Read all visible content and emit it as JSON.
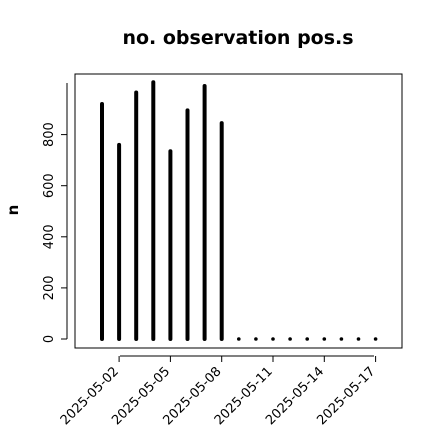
{
  "chart_data": {
    "type": "bar",
    "title": "no. observation pos.s",
    "xlabel": "",
    "ylabel": "n",
    "ylim": [
      0,
      1000
    ],
    "yticks": [
      "0",
      "200",
      "400",
      "600",
      "800"
    ],
    "x": [
      "2025-05-01",
      "2025-05-02",
      "2025-05-03",
      "2025-05-04",
      "2025-05-05",
      "2025-05-06",
      "2025-05-07",
      "2025-05-08",
      "2025-05-09",
      "2025-05-10",
      "2025-05-11",
      "2025-05-12",
      "2025-05-13",
      "2025-05-14",
      "2025-05-15",
      "2025-05-16",
      "2025-05-17"
    ],
    "values": [
      920,
      760,
      965,
      1005,
      735,
      895,
      990,
      845,
      0,
      0,
      0,
      0,
      0,
      0,
      0,
      0,
      0
    ],
    "xticks": [
      "2025-05-02",
      "2025-05-05",
      "2025-05-08",
      "2025-05-11",
      "2025-05-14",
      "2025-05-17"
    ],
    "highlight_tick": "2025-05-08",
    "bar_color": "#000000",
    "highlight_color": "#228B22",
    "grid": false
  }
}
